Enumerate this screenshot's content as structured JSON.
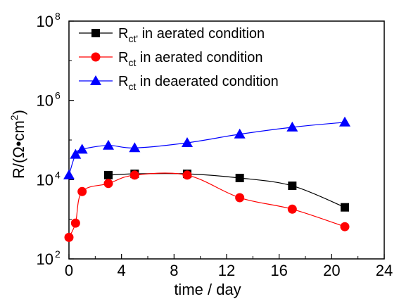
{
  "chart_data": {
    "type": "line",
    "xlabel": "time / day",
    "ylabel": "R/(Ω•cm2)",
    "ylabel_parts": {
      "main": "R/(Ω•cm",
      "sup": "2",
      "close": ")"
    },
    "xlim": [
      0,
      24
    ],
    "ylim": [
      100,
      100000000
    ],
    "yscale": "log",
    "xticks": [
      "0",
      "4",
      "8",
      "12",
      "16",
      "20",
      "24"
    ],
    "xtick_values": [
      0,
      4,
      8,
      12,
      16,
      20,
      24
    ],
    "yticks": [
      {
        "value": 100,
        "base": "10",
        "exp": "2"
      },
      {
        "value": 10000,
        "base": "10",
        "exp": "4"
      },
      {
        "value": 1000000,
        "base": "10",
        "exp": "6"
      },
      {
        "value": 100000000,
        "base": "10",
        "exp": "8"
      }
    ],
    "legend_position": "top-left",
    "series": [
      {
        "name": "Rct' in aerated condition",
        "label_main": "R",
        "label_sub": "ct'",
        "label_rest": " in aerated condition",
        "color": "#000000",
        "marker": "square",
        "x": [
          3,
          5,
          9,
          13,
          17,
          21
        ],
        "y": [
          13000,
          14000,
          14000,
          11000,
          7000,
          2000
        ]
      },
      {
        "name": "Rct in aerated condition",
        "label_main": "R",
        "label_sub": "ct",
        "label_rest": " in aerated condition",
        "color": "#ff0000",
        "marker": "circle",
        "x": [
          0,
          0.5,
          1,
          3,
          5,
          9,
          13,
          17,
          21
        ],
        "y": [
          350,
          800,
          5000,
          8000,
          13000,
          13000,
          3500,
          1800,
          650
        ]
      },
      {
        "name": "Rct in deaerated condition",
        "label_main": "R",
        "label_sub": "ct",
        "label_rest": " in deaerated condition",
        "color": "#0000ff",
        "marker": "triangle",
        "x": [
          0,
          0.5,
          1,
          3,
          5,
          9,
          13,
          17,
          21
        ],
        "y": [
          13000,
          43000,
          58000,
          73000,
          63000,
          85000,
          140000,
          210000,
          280000
        ]
      }
    ]
  }
}
